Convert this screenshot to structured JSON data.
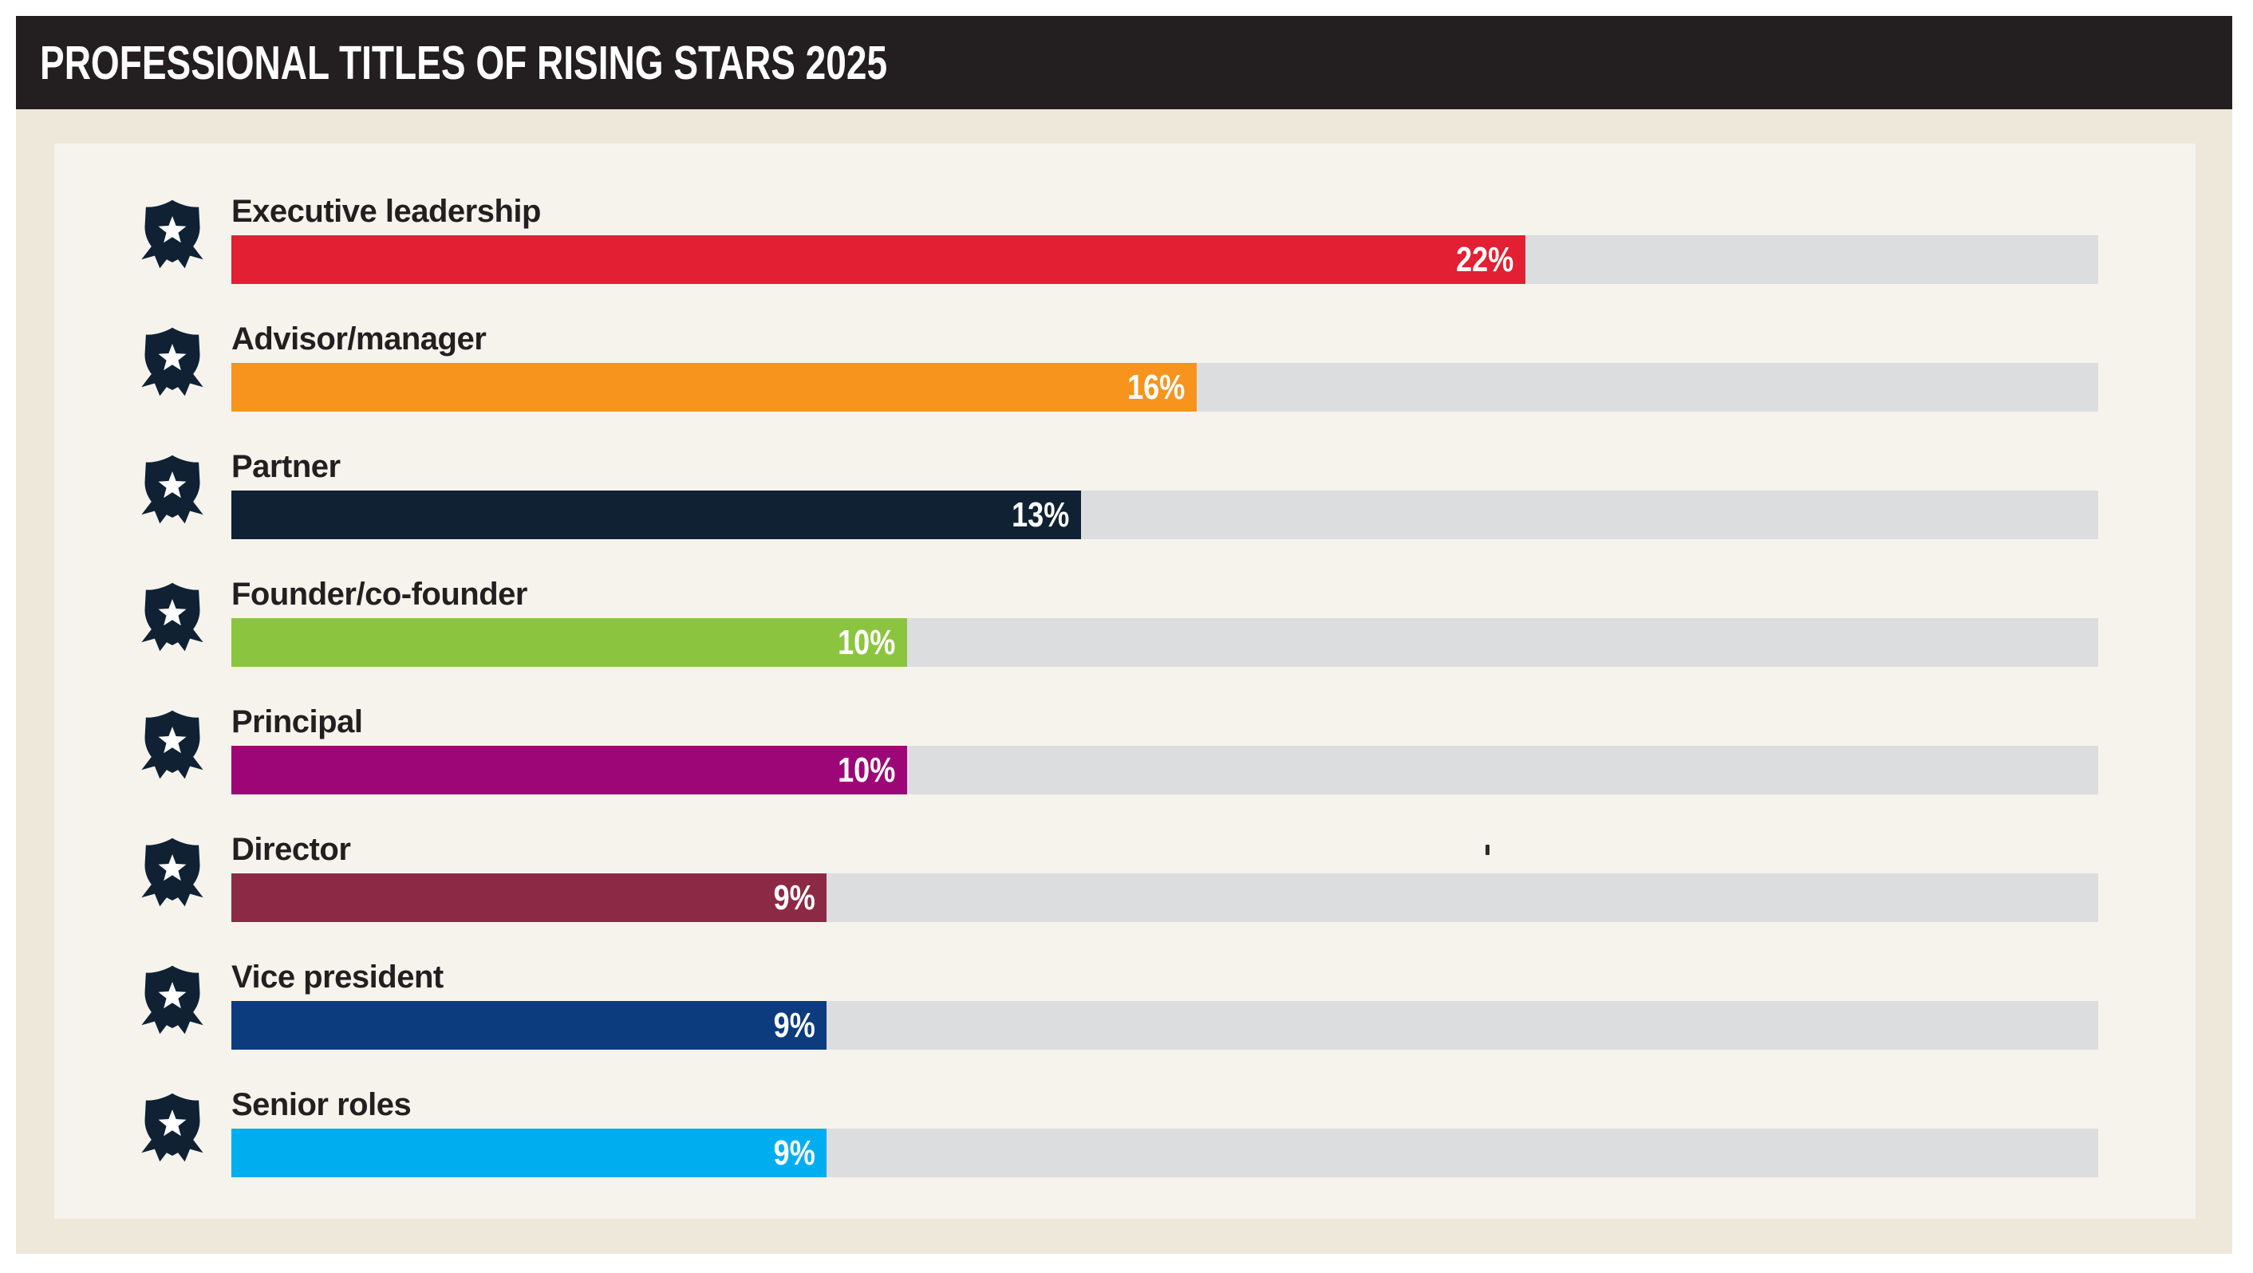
{
  "header": {
    "title": "PROFESSIONAL TITLES OF RISING STARS 2025"
  },
  "chart_data": {
    "type": "bar",
    "orientation": "horizontal",
    "title": "PROFESSIONAL TITLES OF RISING STARS 2025",
    "unit": "%",
    "grid": false,
    "legend": false,
    "value_label_position": "inside-end",
    "row_icon": "award-badge",
    "track_color": "#dcdddf",
    "categories": [
      "Executive leadership",
      "Advisor/manager",
      "Partner",
      "Founder/co-founder",
      "Principal",
      "Director",
      "Vice president",
      "Senior roles"
    ],
    "values": [
      22,
      16,
      13,
      10,
      10,
      9,
      9,
      9
    ],
    "rows": [
      {
        "label": "Executive leadership",
        "value": 22,
        "value_label": "22%",
        "color": "#e21f33",
        "bar_fraction": 0.693
      },
      {
        "label": "Advisor/manager",
        "value": 16,
        "value_label": "16%",
        "color": "#f7941e",
        "bar_fraction": 0.517
      },
      {
        "label": "Partner",
        "value": 13,
        "value_label": "13%",
        "color": "#0f2133",
        "bar_fraction": 0.455
      },
      {
        "label": "Founder/co-founder",
        "value": 10,
        "value_label": "10%",
        "color": "#8bc53f",
        "bar_fraction": 0.362
      },
      {
        "label": "Principal",
        "value": 10,
        "value_label": "10%",
        "color": "#9c0677",
        "bar_fraction": 0.362
      },
      {
        "label": "Director",
        "value": 9,
        "value_label": "9%",
        "color": "#8c2a45",
        "bar_fraction": 0.319
      },
      {
        "label": "Vice president",
        "value": 9,
        "value_label": "9%",
        "color": "#0c3b7e",
        "bar_fraction": 0.319
      },
      {
        "label": "Senior roles",
        "value": 9,
        "value_label": "9%",
        "color": "#00aeef",
        "bar_fraction": 0.319
      }
    ]
  },
  "colors": {
    "header_bg": "#231f20",
    "header_text": "#ffffff",
    "outer_bg": "#eee8da",
    "panel_bg": "#f5f3ec",
    "track": "#dcdddf",
    "label_text": "#231f20",
    "badge": "#0f2133",
    "value_text": "#ffffff"
  }
}
